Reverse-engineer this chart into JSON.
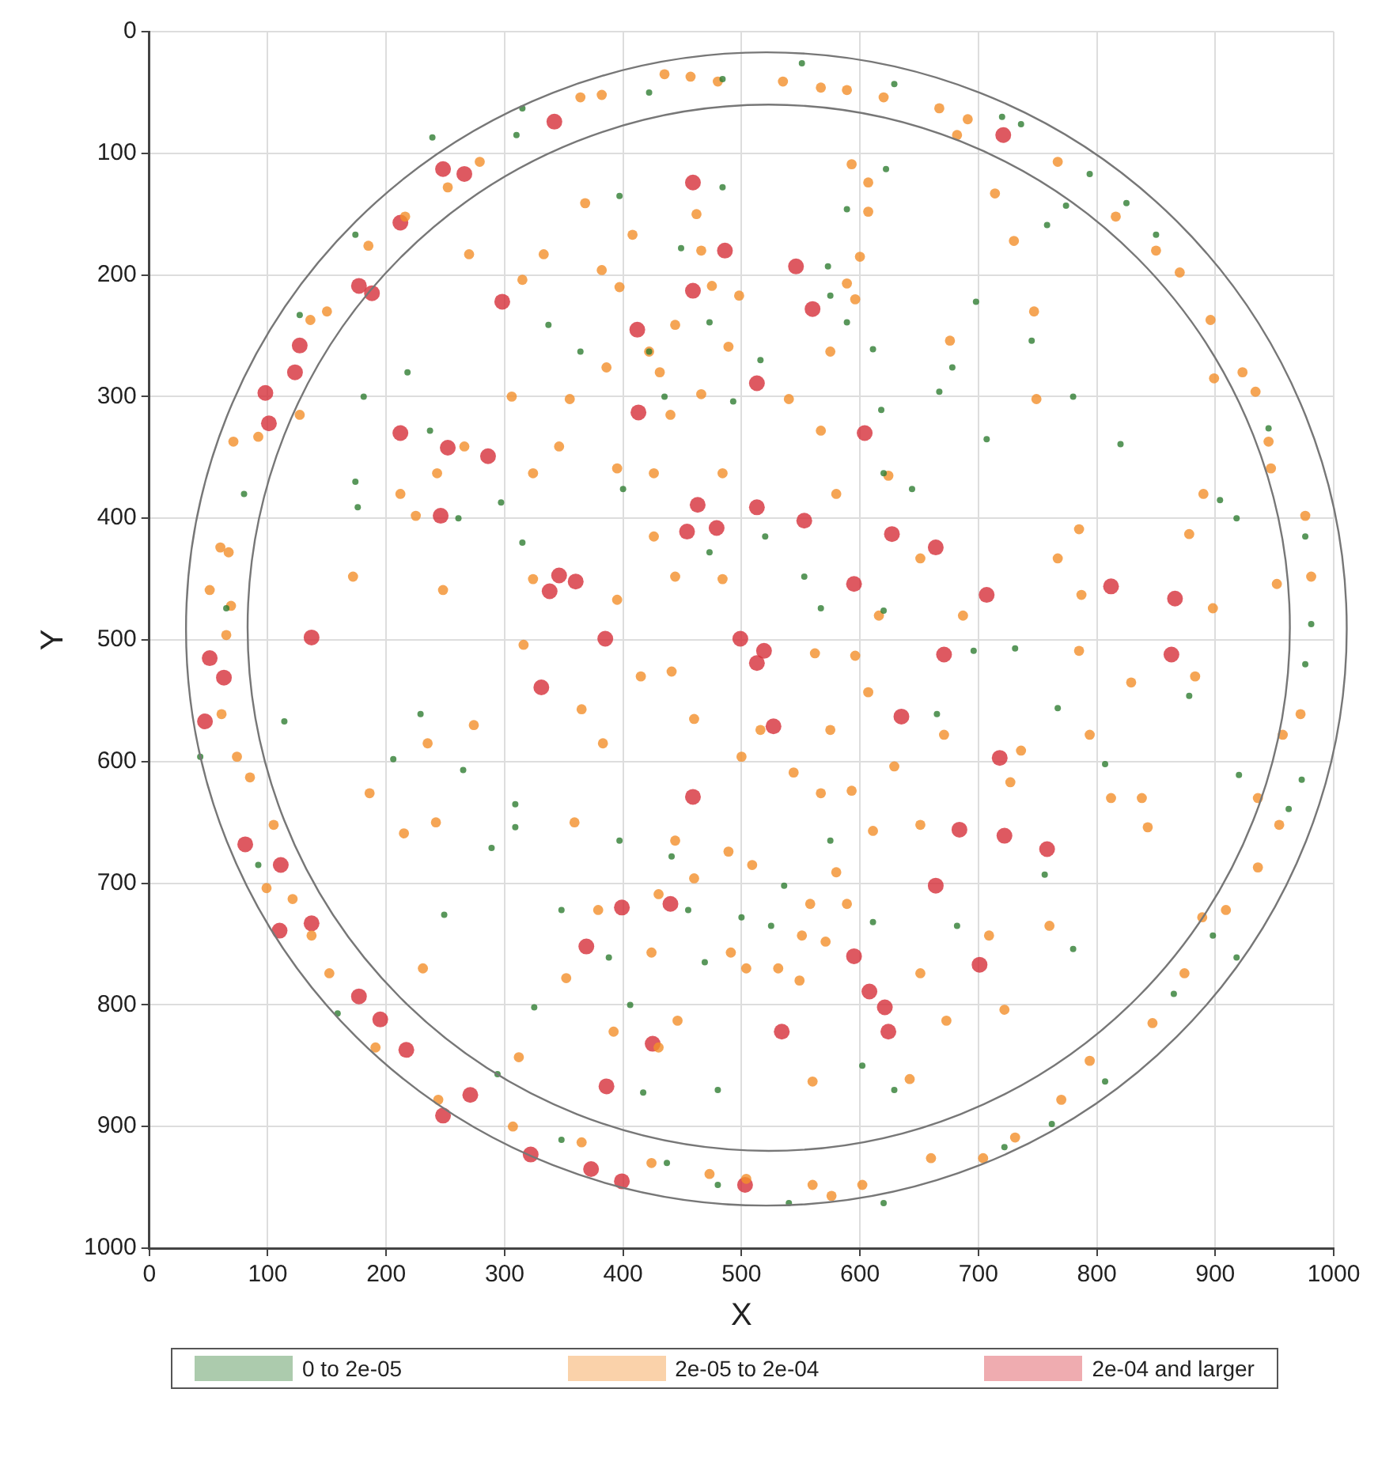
{
  "chart_data": {
    "type": "scatter",
    "xlabel": "X",
    "ylabel": "Y",
    "xlim": [
      0,
      1000
    ],
    "ylim": [
      1000,
      0
    ],
    "xticks": [
      0,
      100,
      200,
      300,
      400,
      500,
      600,
      700,
      800,
      900,
      1000
    ],
    "yticks": [
      0,
      100,
      200,
      300,
      400,
      500,
      600,
      700,
      800,
      900,
      1000
    ],
    "grid": true,
    "legend": "bottom",
    "marker": "circle",
    "series": [
      {
        "name": "0 to 2e-05",
        "color": "#2f7d32",
        "x": [
          484,
          422,
          315,
          310,
          239,
          174,
          127,
          80,
          65,
          397,
          484,
          449,
          337,
          364,
          422,
          473,
          516,
          218,
          181,
          237,
          174,
          176,
          261,
          473,
          520,
          315,
          400,
          493,
          435,
          297,
          551,
          629,
          720,
          736,
          794,
          774,
          825,
          850,
          758,
          698,
          745,
          678,
          667,
          780,
          820,
          707,
          945,
          904,
          918,
          976,
          981,
          573,
          575,
          589,
          611,
          618,
          620,
          644,
          589,
          622,
          553,
          567,
          620,
          43,
          92,
          159,
          294,
          348,
          437,
          480,
          206,
          249,
          309,
          309,
          289,
          348,
          388,
          417,
          480,
          455,
          441,
          500,
          397,
          469,
          406,
          325,
          229,
          265,
          114,
          525,
          611,
          696,
          731,
          807,
          920,
          973,
          962,
          898,
          918,
          865,
          807,
          762,
          722,
          620,
          540,
          602,
          629,
          756,
          682,
          780,
          665,
          575,
          536,
          767,
          878,
          976
        ],
        "values": [
          39,
          50,
          63,
          85,
          87,
          167,
          233,
          380,
          474,
          135,
          128,
          178,
          241,
          263,
          263,
          239,
          270,
          280,
          300,
          328,
          370,
          391,
          400,
          428,
          415,
          420,
          376,
          304,
          300,
          387,
          26,
          43,
          70,
          76,
          117,
          143,
          141,
          167,
          159,
          222,
          254,
          276,
          296,
          300,
          339,
          335,
          326,
          385,
          400,
          415,
          487,
          193,
          217,
          239,
          261,
          311,
          363,
          376,
          146,
          113,
          448,
          474,
          476,
          596,
          685,
          807,
          857,
          911,
          930,
          948,
          598,
          726,
          635,
          654,
          671,
          722,
          761,
          872,
          870,
          722,
          678,
          728,
          665,
          765,
          800,
          802,
          561,
          607,
          567,
          735,
          732,
          509,
          507,
          602,
          611,
          615,
          639,
          743,
          761,
          791,
          863,
          898,
          917,
          963,
          963,
          850,
          870,
          693,
          735,
          754,
          561,
          665,
          702,
          556,
          546,
          520
        ]
      },
      {
        "name": "2e-05 to 2e-04",
        "color": "#f28e2b",
        "x": [
          457,
          435,
          480,
          382,
          364,
          279,
          252,
          216,
          185,
          150,
          136,
          71,
          67,
          60,
          51,
          69,
          368,
          408,
          462,
          466,
          333,
          315,
          397,
          382,
          498,
          475,
          444,
          489,
          422,
          386,
          431,
          466,
          355,
          440,
          306,
          346,
          395,
          426,
          484,
          324,
          266,
          243,
          212,
          225,
          426,
          444,
          484,
          324,
          248,
          395,
          172,
          92,
          127,
          270,
          535,
          567,
          589,
          620,
          667,
          691,
          682,
          767,
          593,
          607,
          714,
          607,
          730,
          600,
          589,
          816,
          850,
          870,
          747,
          676,
          596,
          575,
          896,
          899,
          923,
          934,
          945,
          947,
          749,
          976,
          981,
          952,
          890,
          878,
          785,
          767,
          787,
          898,
          687,
          651,
          624,
          567,
          540,
          580,
          616,
          65,
          85,
          105,
          121,
          137,
          152,
          191,
          244,
          307,
          365,
          424,
          473,
          504,
          186,
          242,
          215,
          359,
          231,
          352,
          312,
          392,
          446,
          430,
          379,
          430,
          460,
          489,
          509,
          491,
          504,
          424,
          444,
          415,
          441,
          365,
          383,
          316,
          274,
          235,
          460,
          516,
          500,
          74,
          99,
          61,
          562,
          596,
          607,
          575,
          544,
          567,
          593,
          629,
          651,
          611,
          580,
          558,
          589,
          551,
          571,
          531,
          549,
          651,
          673,
          722,
          642,
          560,
          709,
          760,
          794,
          829,
          883,
          736,
          727,
          812,
          843,
          838,
          936,
          954,
          936,
          909,
          889,
          874,
          847,
          794,
          770,
          731,
          704,
          660,
          602,
          576,
          560,
          972,
          957,
          785,
          671
        ],
        "values": [
          37,
          35,
          41,
          52,
          54,
          107,
          128,
          152,
          176,
          230,
          237,
          337,
          428,
          424,
          459,
          472,
          141,
          167,
          150,
          180,
          183,
          204,
          210,
          196,
          217,
          209,
          241,
          259,
          263,
          276,
          280,
          298,
          302,
          315,
          300,
          341,
          359,
          363,
          363,
          363,
          341,
          363,
          380,
          398,
          415,
          448,
          450,
          450,
          459,
          467,
          448,
          333,
          315,
          183,
          41,
          46,
          48,
          54,
          63,
          72,
          85,
          107,
          109,
          124,
          133,
          148,
          172,
          185,
          207,
          152,
          180,
          198,
          230,
          254,
          220,
          263,
          237,
          285,
          280,
          296,
          337,
          359,
          302,
          398,
          448,
          454,
          380,
          413,
          409,
          433,
          463,
          474,
          480,
          433,
          365,
          328,
          302,
          380,
          480,
          496,
          613,
          652,
          713,
          743,
          774,
          835,
          878,
          900,
          913,
          930,
          939,
          943,
          626,
          650,
          659,
          650,
          770,
          778,
          843,
          822,
          813,
          835,
          722,
          709,
          696,
          674,
          685,
          757,
          770,
          757,
          665,
          530,
          526,
          557,
          585,
          504,
          570,
          585,
          565,
          574,
          596,
          596,
          704,
          561,
          511,
          513,
          543,
          574,
          609,
          626,
          624,
          604,
          652,
          657,
          691,
          717,
          717,
          743,
          748,
          770,
          780,
          774,
          813,
          804,
          861,
          863,
          743,
          735,
          578,
          535,
          530,
          591,
          617,
          630,
          654,
          630,
          630,
          652,
          687,
          722,
          728,
          774,
          815,
          846,
          878,
          909,
          926,
          926,
          948,
          957,
          948,
          561,
          578,
          509,
          578
        ]
      },
      {
        "name": "2e-04 and larger",
        "color": "#d62f3a",
        "x": [
          342,
          248,
          266,
          212,
          177,
          188,
          127,
          123,
          98,
          101,
          459,
          486,
          459,
          298,
          412,
          513,
          413,
          212,
          252,
          286,
          463,
          513,
          454,
          479,
          246,
          346,
          360,
          338,
          385,
          721,
          546,
          560,
          604,
          553,
          627,
          664,
          595,
          707,
          812,
          866,
          671,
          863,
          635,
          527,
          718,
          684,
          722,
          758,
          664,
          595,
          608,
          621,
          624,
          701,
          534,
          519,
          51,
          47,
          81,
          111,
          110,
          137,
          177,
          195,
          217,
          248,
          271,
          322,
          373,
          399,
          503,
          386,
          425,
          369,
          440,
          399,
          459,
          331,
          137,
          63,
          499,
          513
        ],
        "values": [
          74,
          113,
          117,
          157,
          209,
          215,
          258,
          280,
          297,
          322,
          124,
          180,
          213,
          222,
          245,
          289,
          313,
          330,
          342,
          349,
          389,
          391,
          411,
          408,
          398,
          447,
          452,
          460,
          499,
          85,
          193,
          228,
          330,
          402,
          413,
          424,
          454,
          463,
          456,
          466,
          512,
          512,
          563,
          571,
          597,
          656,
          661,
          672,
          702,
          760,
          789,
          802,
          822,
          767,
          822,
          509,
          515,
          567,
          668,
          685,
          739,
          733,
          793,
          812,
          837,
          891,
          874,
          923,
          935,
          945,
          948,
          867,
          832,
          752,
          717,
          720,
          629,
          539,
          498,
          531,
          499,
          519
        ]
      }
    ]
  }
}
